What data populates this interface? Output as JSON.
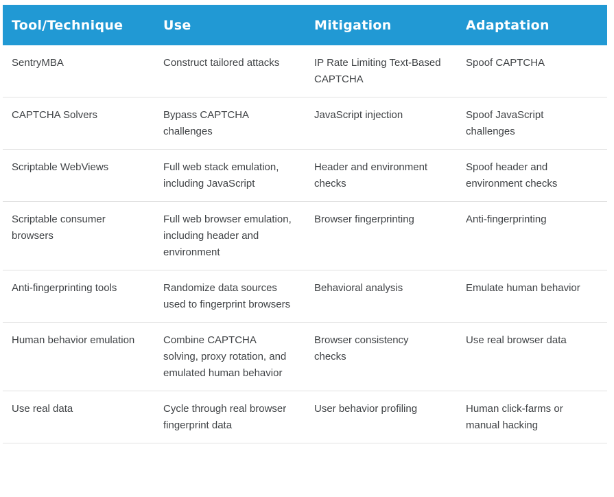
{
  "table": {
    "columns": [
      "Tool/Technique",
      "Use",
      "Mitigation",
      "Adaptation"
    ],
    "rows": [
      {
        "tool": "SentryMBA",
        "use": "Construct tailored attacks",
        "mitigation": "IP Rate Limiting Text-Based CAPTCHA",
        "adaptation": "Spoof CAPTCHA"
      },
      {
        "tool": "CAPTCHA Solvers",
        "use": "Bypass CAPTCHA challenges",
        "mitigation": "JavaScript injection",
        "adaptation": "Spoof JavaScript challenges"
      },
      {
        "tool": "Scriptable WebViews",
        "use": "Full web stack emulation, including JavaScript",
        "mitigation": "Header and environment checks",
        "adaptation": "Spoof header and environment checks"
      },
      {
        "tool": "Scriptable consumer browsers",
        "use": "Full web browser emulation, including header and environment",
        "mitigation": "Browser fingerprinting",
        "adaptation": "Anti-fingerprinting"
      },
      {
        "tool": "Anti-fingerprinting tools",
        "use": "Randomize data sources used to fingerprint browsers",
        "mitigation": "Behavioral analysis",
        "adaptation": "Emulate human behavior"
      },
      {
        "tool": "Human behavior emulation",
        "use": "Combine CAPTCHA solving, proxy rotation, and emulated human behavior",
        "mitigation": "Browser consistency checks",
        "adaptation": "Use real browser data"
      },
      {
        "tool": "Use real data",
        "use": "Cycle through real browser fingerprint data",
        "mitigation": "User behavior profiling",
        "adaptation": "Human click-farms or manual hacking"
      }
    ]
  },
  "colors": {
    "header_bg": "#2199d4",
    "header_text": "#ffffff",
    "body_text": "#3f4245",
    "divider": "#e1e1e1",
    "page_bg": "#ffffff"
  }
}
